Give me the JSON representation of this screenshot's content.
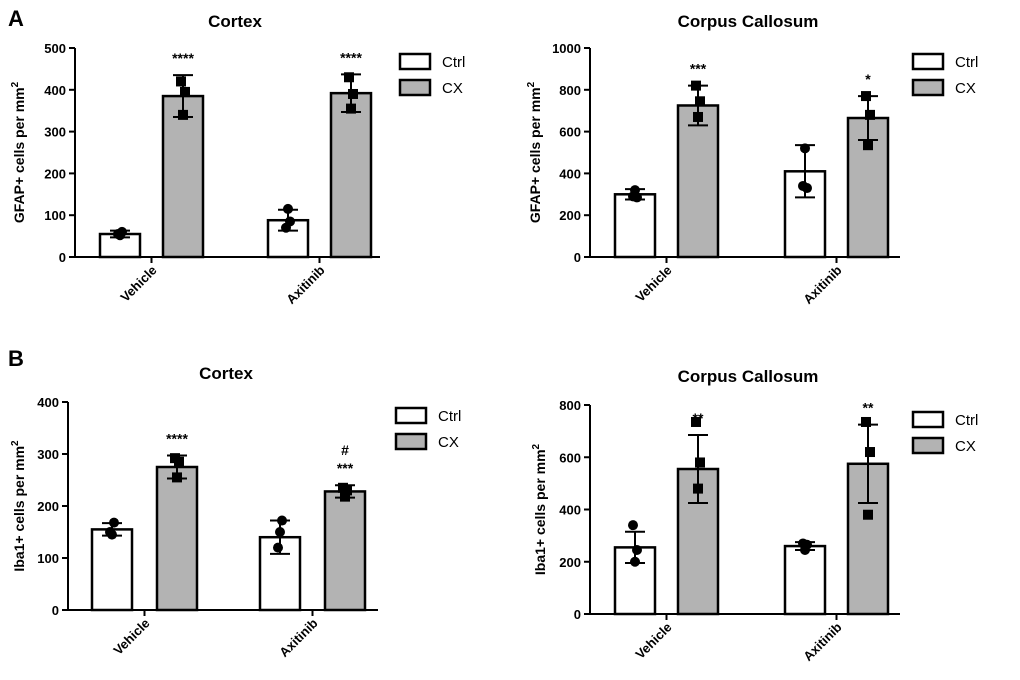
{
  "figure": {
    "panel_a_label": "A",
    "panel_b_label": "B"
  },
  "colors": {
    "ctrl_fill": "#ffffff",
    "cx_fill": "#b3b3b3",
    "stroke": "#000000"
  },
  "chart_data": [
    {
      "type": "bar",
      "title": "Cortex",
      "ylabel": "GFAP+ cells per mm",
      "ylabel_sup": "2",
      "ylim": [
        0,
        500
      ],
      "yticks": [
        0,
        100,
        200,
        300,
        400,
        500
      ],
      "categories": [
        "Vehicle",
        "Axitinib"
      ],
      "legend": [
        "Ctrl",
        "CX"
      ],
      "series": [
        {
          "name": "Ctrl",
          "values": [
            55,
            88
          ],
          "errors": [
            8,
            25
          ],
          "points": [
            [
              55,
              52,
              60
            ],
            [
              70,
              115,
              85
            ]
          ]
        },
        {
          "name": "CX",
          "values": [
            385,
            392
          ],
          "errors": [
            50,
            45
          ],
          "points": [
            [
              420,
              340,
              395
            ],
            [
              430,
              355,
              390
            ]
          ]
        }
      ],
      "significance": [
        [
          "",
          ""
        ],
        [
          "****",
          "****"
        ]
      ]
    },
    {
      "type": "bar",
      "title": "Corpus Callosum",
      "ylabel": "GFAP+ cells per mm",
      "ylabel_sup": "2",
      "ylim": [
        0,
        1000
      ],
      "yticks": [
        0,
        200,
        400,
        600,
        800,
        1000
      ],
      "categories": [
        "Vehicle",
        "Axitinib"
      ],
      "legend": [
        "Ctrl",
        "CX"
      ],
      "series": [
        {
          "name": "Ctrl",
          "values": [
            300,
            410
          ],
          "errors": [
            25,
            125
          ],
          "points": [
            [
              290,
              320,
              285
            ],
            [
              340,
              520,
              330
            ]
          ]
        },
        {
          "name": "CX",
          "values": [
            725,
            665
          ],
          "errors": [
            95,
            105
          ],
          "points": [
            [
              820,
              670,
              745
            ],
            [
              770,
              535,
              680
            ]
          ]
        }
      ],
      "significance": [
        [
          "",
          ""
        ],
        [
          "***",
          "*"
        ]
      ]
    },
    {
      "type": "bar",
      "title": "Cortex",
      "ylabel": "Iba1+ cells per mm",
      "ylabel_sup": "2",
      "ylim": [
        0,
        400
      ],
      "yticks": [
        0,
        100,
        200,
        300,
        400
      ],
      "categories": [
        "Vehicle",
        "Axitinib"
      ],
      "legend": [
        "Ctrl",
        "CX"
      ],
      "series": [
        {
          "name": "Ctrl",
          "values": [
            155,
            140
          ],
          "errors": [
            12,
            32
          ],
          "points": [
            [
              150,
              145,
              168
            ],
            [
              120,
              150,
              172
            ]
          ]
        },
        {
          "name": "CX",
          "values": [
            275,
            228
          ],
          "errors": [
            22,
            12
          ],
          "points": [
            [
              292,
              255,
              285
            ],
            [
              235,
              218,
              230
            ]
          ]
        }
      ],
      "significance": [
        [
          "",
          ""
        ],
        [
          "****",
          "***"
        ]
      ],
      "extra_marks": [
        [
          "",
          ""
        ],
        [
          "",
          "#"
        ]
      ]
    },
    {
      "type": "bar",
      "title": "Corpus Callosum",
      "ylabel": "Iba1+ cells per mm",
      "ylabel_sup": "2",
      "ylim": [
        0,
        800
      ],
      "yticks": [
        0,
        200,
        400,
        600,
        800
      ],
      "categories": [
        "Vehicle",
        "Axitinib"
      ],
      "legend": [
        "Ctrl",
        "CX"
      ],
      "series": [
        {
          "name": "Ctrl",
          "values": [
            255,
            260
          ],
          "errors": [
            60,
            15
          ],
          "points": [
            [
              340,
              200,
              245
            ],
            [
              270,
              245,
              265
            ]
          ]
        },
        {
          "name": "CX",
          "values": [
            555,
            575
          ],
          "errors": [
            130,
            150
          ],
          "points": [
            [
              735,
              480,
              580
            ],
            [
              735,
              380,
              620
            ]
          ]
        }
      ],
      "significance": [
        [
          "",
          ""
        ],
        [
          "**",
          "**"
        ]
      ]
    }
  ]
}
